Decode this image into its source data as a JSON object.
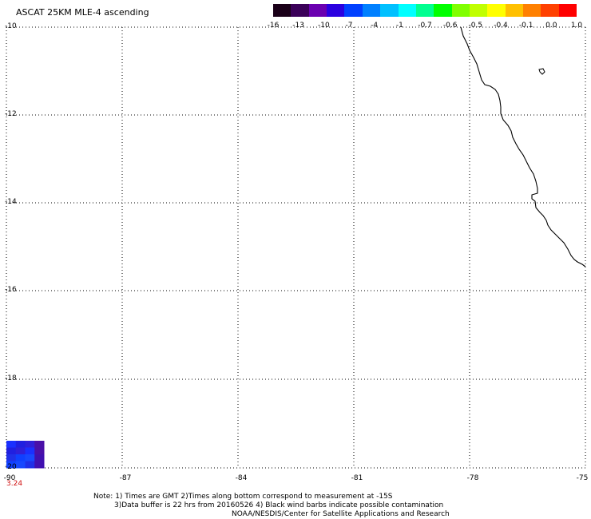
{
  "title": "ASCAT 25KM MLE-4 ascending",
  "colors": {
    "scale": [
      "#1a0018",
      "#3a0058",
      "#6a00b0",
      "#2a00e0",
      "#0040ff",
      "#0080ff",
      "#00c0ff",
      "#00ffff",
      "#00ff90",
      "#00ff00",
      "#80ff00",
      "#c0ff00",
      "#ffff00",
      "#ffc000",
      "#ff8000",
      "#ff4000",
      "#ff0000"
    ],
    "coastline": "#000000",
    "grid": "#000000",
    "cell_value_text": "#d01010",
    "cells": [
      "#1a30ff",
      "#2020e0",
      "#3020d8",
      "#4a10a8",
      "#1040ff",
      "#1848ff",
      "#2030e8",
      "#4010b0"
    ]
  },
  "scale_labels": [
    "-16",
    "-13",
    "-10",
    "-7",
    "-4",
    "-1",
    "-0.7",
    "-0.6",
    "-0.5",
    "-0.4",
    "-0.1",
    "0.0",
    "1.0"
  ],
  "lat_labels": [
    "-10",
    "-12",
    "-14",
    "-16",
    "-18",
    "-20"
  ],
  "lon_labels": [
    "-90",
    "-87",
    "-84",
    "-81",
    "-78",
    "-75"
  ],
  "cell_value": "3.24",
  "notes": [
    "Note: 1) Times are GMT 2)Times along bottom correspond to measurement at -15S",
    "3)Data buffer is 22 hrs from 20160526 4) Black wind barbs indicate possible contamination",
    "NOAA/NESDIS/Center for Satellite Applications and Research"
  ]
}
